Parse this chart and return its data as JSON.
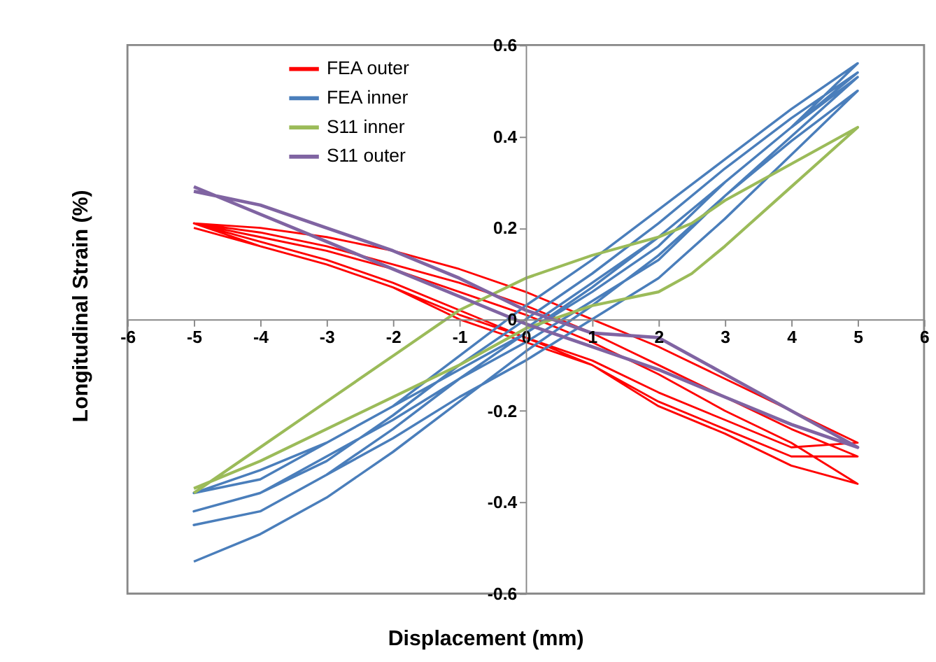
{
  "chart_data": {
    "type": "line",
    "xlabel": "Displacement (mm)",
    "ylabel": "Longitudinal Strain (%)",
    "xlim": [
      -6,
      6
    ],
    "xticks": [
      -6,
      -5,
      -4,
      -3,
      -2,
      -1,
      0,
      1,
      2,
      3,
      4,
      5,
      6
    ],
    "ylim": [
      -0.6,
      0.6
    ],
    "yticks": [
      -0.6,
      -0.4,
      -0.2,
      0,
      0.2,
      0.4,
      0.6
    ],
    "grid": false,
    "legend": "top left",
    "marker": "none",
    "line_style": "solid",
    "series": [
      {
        "name": "FEA outer",
        "color": "#ff0000",
        "x": [
          -5,
          -4,
          -3,
          -2,
          -1,
          0,
          1,
          2,
          3,
          4,
          5,
          4,
          3,
          2,
          1,
          0,
          -1,
          -2,
          -3,
          -4,
          -5,
          -4,
          -3,
          -2,
          -1,
          0,
          1,
          2,
          3,
          4,
          5,
          4,
          3,
          2,
          1,
          0,
          -1,
          -2,
          -3,
          -4,
          -5,
          -4,
          -3,
          -2,
          -1,
          0,
          1,
          2,
          3,
          4,
          5,
          4,
          3,
          2,
          1,
          0,
          -1,
          -2,
          -3,
          -4,
          -5
        ],
        "values": [
          0.2,
          0.16,
          0.12,
          0.07,
          0.01,
          -0.04,
          -0.09,
          -0.16,
          -0.22,
          -0.28,
          -0.27,
          -0.2,
          -0.13,
          -0.06,
          0.0,
          0.06,
          0.11,
          0.15,
          0.18,
          0.2,
          0.21,
          0.17,
          0.13,
          0.08,
          0.02,
          -0.04,
          -0.1,
          -0.18,
          -0.24,
          -0.3,
          -0.3,
          -0.24,
          -0.17,
          -0.1,
          -0.03,
          0.03,
          0.08,
          0.12,
          0.16,
          0.19,
          0.21,
          0.16,
          0.12,
          0.07,
          0.0,
          -0.05,
          -0.1,
          -0.19,
          -0.25,
          -0.32,
          -0.36,
          -0.27,
          -0.2,
          -0.12,
          -0.05,
          0.01,
          0.06,
          0.11,
          0.15,
          0.18,
          0.21
        ]
      },
      {
        "name": "FEA inner",
        "color": "#4a7ebb",
        "x": [
          0,
          1,
          2,
          3,
          4,
          5,
          4,
          3,
          2,
          1,
          0,
          -1,
          -2,
          -3,
          -4,
          -5,
          -4,
          -3,
          -2,
          -1,
          0,
          1,
          2,
          3,
          4,
          5,
          4,
          3,
          2,
          1,
          0,
          -1,
          -2,
          -3,
          -4,
          -5,
          -4,
          -3,
          -2,
          -1,
          0,
          1,
          2,
          3,
          4,
          5,
          4,
          3,
          2,
          1,
          0,
          -1,
          -2,
          -3,
          -4,
          -5,
          -4,
          -3,
          -2,
          -1,
          0,
          1,
          2,
          3,
          4,
          5,
          4,
          3,
          2,
          1,
          0,
          -1,
          -2,
          -3,
          -4,
          -5
        ],
        "values": [
          -0.02,
          0.08,
          0.18,
          0.3,
          0.42,
          0.56,
          0.46,
          0.35,
          0.24,
          0.13,
          0.03,
          -0.08,
          -0.19,
          -0.27,
          -0.33,
          -0.38,
          -0.35,
          -0.27,
          -0.19,
          -0.11,
          -0.03,
          0.06,
          0.16,
          0.3,
          0.42,
          0.54,
          0.44,
          0.33,
          0.21,
          0.1,
          0.0,
          -0.1,
          -0.21,
          -0.31,
          -0.38,
          -0.42,
          -0.38,
          -0.3,
          -0.22,
          -0.13,
          -0.05,
          0.04,
          0.13,
          0.27,
          0.4,
          0.53,
          0.42,
          0.3,
          0.18,
          0.07,
          -0.03,
          -0.13,
          -0.24,
          -0.34,
          -0.42,
          -0.45,
          -0.42,
          -0.34,
          -0.26,
          -0.17,
          -0.09,
          0.0,
          0.09,
          0.22,
          0.36,
          0.5,
          0.39,
          0.27,
          0.14,
          0.03,
          -0.07,
          -0.18,
          -0.29,
          -0.39,
          -0.47,
          -0.53
        ]
      },
      {
        "name": "S11 inner",
        "color": "#9bbb59",
        "x": [
          -5,
          -4,
          -3,
          -2,
          -1,
          0,
          1,
          2,
          2.5,
          3,
          4,
          5,
          4,
          3,
          2.5,
          2,
          1,
          0,
          -1,
          -2,
          -3,
          -4,
          -5
        ],
        "values": [
          -0.38,
          -0.28,
          -0.18,
          -0.08,
          0.02,
          0.09,
          0.14,
          0.18,
          0.21,
          0.26,
          0.34,
          0.42,
          0.29,
          0.16,
          0.1,
          0.06,
          0.03,
          -0.02,
          -0.1,
          -0.17,
          -0.24,
          -0.31,
          -0.37
        ]
      },
      {
        "name": "S11 outer",
        "color": "#8064a2",
        "x": [
          -5,
          -4,
          -3,
          -2,
          -1,
          0,
          1,
          2,
          3,
          4,
          5,
          4,
          3,
          2,
          1,
          0,
          -1,
          -2,
          -3,
          -4,
          -5
        ],
        "values": [
          0.29,
          0.23,
          0.17,
          0.11,
          0.05,
          -0.01,
          -0.06,
          -0.11,
          -0.17,
          -0.23,
          -0.28,
          -0.2,
          -0.12,
          -0.04,
          -0.03,
          0.02,
          0.09,
          0.15,
          0.2,
          0.25,
          0.28
        ]
      }
    ]
  }
}
